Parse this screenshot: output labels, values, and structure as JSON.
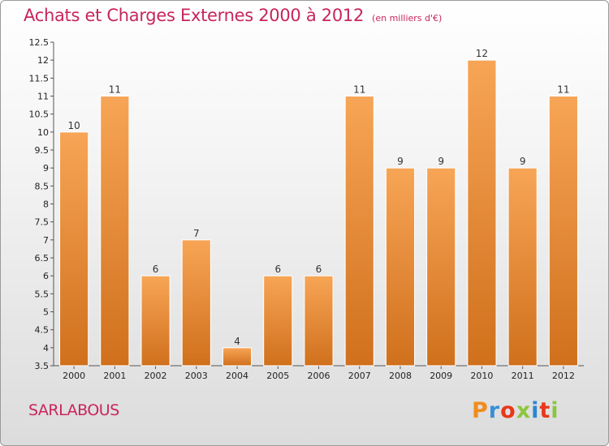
{
  "header": {
    "title": "Achats et Charges Externes 2000 à 2012",
    "subtitle": "(en milliers d'€)"
  },
  "footer": {
    "commune": "SARLABOUS",
    "logo": "Proxiti"
  },
  "colors": {
    "title": "#c8255c",
    "bar_light": "#f7a556",
    "bar_dark": "#d0701c",
    "logo_letters": [
      "#f08c1e",
      "#3a8fd6",
      "#e8381a",
      "#8cc63f",
      "#2b86d1",
      "#e8381a",
      "#8cc63f"
    ]
  },
  "chart_data": {
    "type": "bar",
    "title": "Achats et Charges Externes 2000 à 2012",
    "subtitle": "(en milliers d'€)",
    "xlabel": "",
    "ylabel": "",
    "categories": [
      "2000",
      "2001",
      "2002",
      "2003",
      "2004",
      "2005",
      "2006",
      "2007",
      "2008",
      "2009",
      "2010",
      "2011",
      "2012"
    ],
    "values": [
      10,
      11,
      6,
      7,
      4,
      6,
      6,
      11,
      9,
      9,
      12,
      9,
      11
    ],
    "data_labels": [
      "10",
      "11",
      "6",
      "7",
      "4",
      "6",
      "6",
      "11",
      "9",
      "9",
      "12",
      "9",
      "11"
    ],
    "ylim": [
      3.5,
      12.5
    ],
    "yticks": [
      "3.5",
      "4",
      "4.5",
      "5",
      "5.5",
      "6",
      "6.5",
      "7",
      "7.5",
      "8",
      "8.5",
      "9",
      "9.5",
      "10",
      "10.5",
      "11",
      "11.5",
      "12",
      "12.5"
    ],
    "grid": false,
    "legend": "none"
  }
}
